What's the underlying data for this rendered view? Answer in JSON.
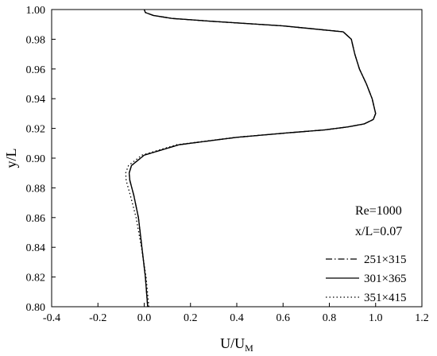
{
  "chart_data": {
    "type": "line",
    "xlabel_main": "U/U",
    "xlabel_sub": "M",
    "ylabel": "y/L",
    "xlim": [
      -0.4,
      1.2
    ],
    "ylim": [
      0.8,
      1.0
    ],
    "x_ticks": [
      "-0.4",
      "-0.2",
      "0.0",
      "0.2",
      "0.4",
      "0.6",
      "0.8",
      "1.0",
      "1.2"
    ],
    "y_ticks": [
      "0.80",
      "0.82",
      "0.84",
      "0.86",
      "0.88",
      "0.90",
      "0.92",
      "0.94",
      "0.96",
      "0.98",
      "1.00"
    ],
    "grid": false,
    "legend_position": "bottom-right",
    "annotations": [
      "Re=1000",
      "x/L=0.07"
    ],
    "series": [
      {
        "name": "251×315",
        "style": "dash-dot",
        "points": [
          [
            0.015,
            0.8
          ],
          [
            0.005,
            0.82
          ],
          [
            -0.01,
            0.84
          ],
          [
            -0.025,
            0.86
          ],
          [
            -0.045,
            0.875
          ],
          [
            -0.062,
            0.885
          ],
          [
            -0.065,
            0.89
          ],
          [
            -0.055,
            0.895
          ],
          [
            0.0,
            0.902
          ],
          [
            0.15,
            0.909
          ],
          [
            0.4,
            0.914
          ],
          [
            0.62,
            0.917
          ],
          [
            0.78,
            0.919
          ],
          [
            0.88,
            0.921
          ],
          [
            0.95,
            0.923
          ],
          [
            0.99,
            0.926
          ],
          [
            1.0,
            0.93
          ],
          [
            0.985,
            0.94
          ],
          [
            0.96,
            0.95
          ],
          [
            0.93,
            0.96
          ],
          [
            0.91,
            0.97
          ],
          [
            0.895,
            0.98
          ],
          [
            0.86,
            0.985
          ],
          [
            0.6,
            0.989
          ],
          [
            0.3,
            0.992
          ],
          [
            0.12,
            0.994
          ],
          [
            0.04,
            0.996
          ],
          [
            0.005,
            0.998
          ],
          [
            0.0,
            1.0
          ]
        ]
      },
      {
        "name": "301×365",
        "style": "solid",
        "points": [
          [
            0.015,
            0.8
          ],
          [
            0.005,
            0.82
          ],
          [
            -0.01,
            0.84
          ],
          [
            -0.025,
            0.86
          ],
          [
            -0.045,
            0.875
          ],
          [
            -0.062,
            0.885
          ],
          [
            -0.065,
            0.89
          ],
          [
            -0.055,
            0.895
          ],
          [
            0.0,
            0.902
          ],
          [
            0.15,
            0.909
          ],
          [
            0.4,
            0.914
          ],
          [
            0.62,
            0.917
          ],
          [
            0.78,
            0.919
          ],
          [
            0.88,
            0.921
          ],
          [
            0.95,
            0.923
          ],
          [
            0.99,
            0.926
          ],
          [
            1.0,
            0.93
          ],
          [
            0.985,
            0.94
          ],
          [
            0.96,
            0.95
          ],
          [
            0.93,
            0.96
          ],
          [
            0.91,
            0.97
          ],
          [
            0.895,
            0.98
          ],
          [
            0.86,
            0.985
          ],
          [
            0.6,
            0.989
          ],
          [
            0.3,
            0.992
          ],
          [
            0.12,
            0.994
          ],
          [
            0.04,
            0.996
          ],
          [
            0.005,
            0.998
          ],
          [
            0.0,
            1.0
          ]
        ]
      },
      {
        "name": "351×415",
        "style": "dotted",
        "points": [
          [
            0.02,
            0.8
          ],
          [
            0.008,
            0.82
          ],
          [
            -0.012,
            0.84
          ],
          [
            -0.035,
            0.86
          ],
          [
            -0.06,
            0.875
          ],
          [
            -0.078,
            0.885
          ],
          [
            -0.08,
            0.89
          ],
          [
            -0.068,
            0.895
          ],
          [
            -0.01,
            0.902
          ],
          [
            0.14,
            0.909
          ],
          [
            0.395,
            0.914
          ],
          [
            0.618,
            0.917
          ],
          [
            0.78,
            0.919
          ],
          [
            0.88,
            0.921
          ],
          [
            0.95,
            0.923
          ],
          [
            0.99,
            0.926
          ],
          [
            1.0,
            0.93
          ],
          [
            0.985,
            0.94
          ],
          [
            0.96,
            0.95
          ],
          [
            0.93,
            0.96
          ],
          [
            0.91,
            0.97
          ],
          [
            0.895,
            0.98
          ],
          [
            0.86,
            0.985
          ],
          [
            0.6,
            0.989
          ],
          [
            0.3,
            0.992
          ],
          [
            0.12,
            0.994
          ],
          [
            0.04,
            0.996
          ],
          [
            0.005,
            0.998
          ],
          [
            0.0,
            1.0
          ]
        ]
      }
    ]
  }
}
